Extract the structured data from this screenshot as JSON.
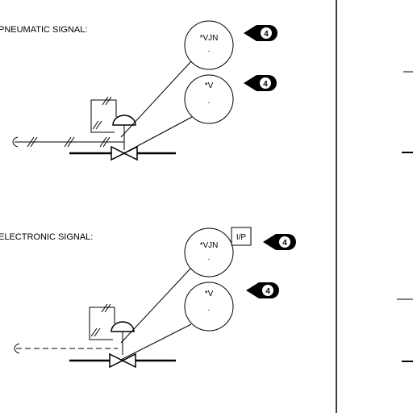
{
  "diagram": {
    "pneumatic": {
      "title": "PNEUMATIC SIGNAL:",
      "upper_bubble": "*VJN",
      "upper_bubble_sub": ".",
      "lower_bubble": "*V",
      "lower_bubble_sub": ".",
      "upper_note": "4",
      "lower_note": "4"
    },
    "electronic": {
      "title": "ELECTRONIC SIGNAL:",
      "upper_bubble": "*VJN",
      "upper_bubble_sub": ".",
      "lower_bubble": "*V",
      "lower_bubble_sub": ".",
      "converter": "I/P",
      "upper_note": "4",
      "lower_note": "4"
    }
  }
}
